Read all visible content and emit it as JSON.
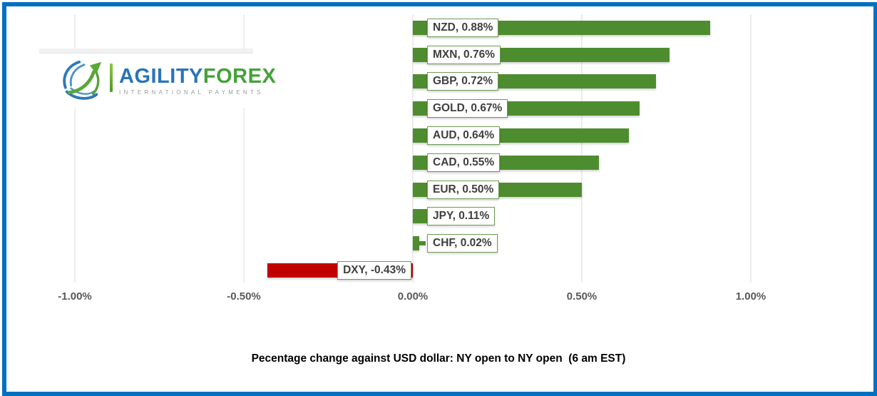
{
  "colors": {
    "frame": "#0071C1",
    "positive": "#4E8D2F",
    "negative": "#C00000",
    "gridline": "#D9D9D9",
    "label_border": "#6E9C53",
    "label_text": "#3F3F3F",
    "axis_text": "#595959",
    "brand_blue": "#2B74B8",
    "brand_green": "#44A13A",
    "tagline_gray": "#9A9A9A"
  },
  "logo": {
    "brand_primary": "AGILITY",
    "brand_secondary": "FOREX",
    "tagline": "INTERNATIONAL PAYMENTS",
    "icon": "globe-arrow-icon"
  },
  "chart_data": {
    "type": "bar",
    "orientation": "horizontal",
    "title": "Pecentage change against USD dollar: NY open to NY open  (6 am EST)",
    "categories": [
      "NZD",
      "MXN",
      "GBP",
      "GOLD",
      "AUD",
      "CAD",
      "EUR",
      "JPY",
      "CHF",
      "DXY"
    ],
    "values": [
      0.88,
      0.76,
      0.72,
      0.67,
      0.64,
      0.55,
      0.5,
      0.11,
      0.02,
      -0.43
    ],
    "labels": [
      "NZD, 0.88%",
      "MXN, 0.76%",
      "GBP, 0.72%",
      "GOLD, 0.67%",
      "AUD, 0.64%",
      "CAD, 0.55%",
      "EUR, 0.50%",
      "JPY, 0.11%",
      "CHF, 0.02%",
      "DXY, -0.43%"
    ],
    "xlim": [
      -1.0,
      1.0
    ],
    "x_ticks": [
      {
        "value": -1.0,
        "label": "-1.00%"
      },
      {
        "value": -0.5,
        "label": "-0.50%"
      },
      {
        "value": 0.0,
        "label": "0.00%"
      },
      {
        "value": 0.5,
        "label": "0.50%"
      },
      {
        "value": 1.0,
        "label": "1.00%"
      }
    ],
    "grid": "vertical-only",
    "legend": "none"
  }
}
